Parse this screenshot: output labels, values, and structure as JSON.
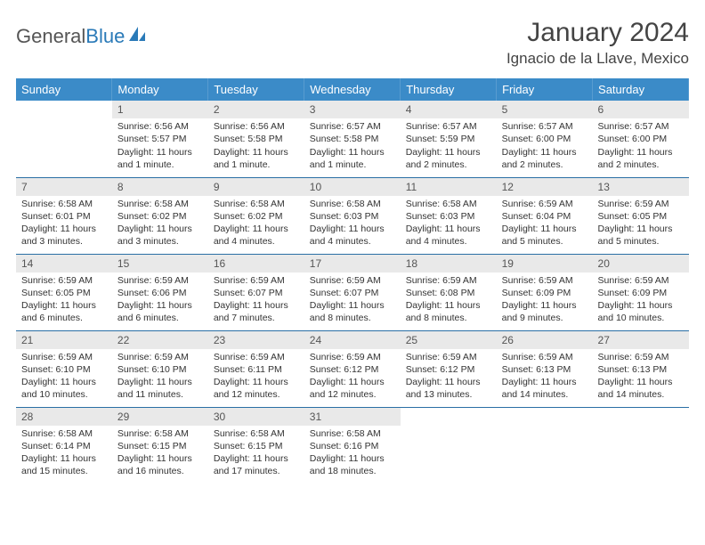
{
  "brand": {
    "part1": "General",
    "part2": "Blue"
  },
  "title": "January 2024",
  "location": "Ignacio de la Llave, Mexico",
  "colors": {
    "header_bg": "#3b8bc8",
    "row_border": "#2a6fa5",
    "daynum_bg": "#e9e9e9",
    "text": "#333333",
    "brand_gray": "#555555",
    "brand_blue": "#2a7ab8"
  },
  "weekdays": [
    "Sunday",
    "Monday",
    "Tuesday",
    "Wednesday",
    "Thursday",
    "Friday",
    "Saturday"
  ],
  "first_weekday_index": 1,
  "days": [
    {
      "n": 1,
      "sunrise": "6:56 AM",
      "sunset": "5:57 PM",
      "daylight": "11 hours and 1 minute."
    },
    {
      "n": 2,
      "sunrise": "6:56 AM",
      "sunset": "5:58 PM",
      "daylight": "11 hours and 1 minute."
    },
    {
      "n": 3,
      "sunrise": "6:57 AM",
      "sunset": "5:58 PM",
      "daylight": "11 hours and 1 minute."
    },
    {
      "n": 4,
      "sunrise": "6:57 AM",
      "sunset": "5:59 PM",
      "daylight": "11 hours and 2 minutes."
    },
    {
      "n": 5,
      "sunrise": "6:57 AM",
      "sunset": "6:00 PM",
      "daylight": "11 hours and 2 minutes."
    },
    {
      "n": 6,
      "sunrise": "6:57 AM",
      "sunset": "6:00 PM",
      "daylight": "11 hours and 2 minutes."
    },
    {
      "n": 7,
      "sunrise": "6:58 AM",
      "sunset": "6:01 PM",
      "daylight": "11 hours and 3 minutes."
    },
    {
      "n": 8,
      "sunrise": "6:58 AM",
      "sunset": "6:02 PM",
      "daylight": "11 hours and 3 minutes."
    },
    {
      "n": 9,
      "sunrise": "6:58 AM",
      "sunset": "6:02 PM",
      "daylight": "11 hours and 4 minutes."
    },
    {
      "n": 10,
      "sunrise": "6:58 AM",
      "sunset": "6:03 PM",
      "daylight": "11 hours and 4 minutes."
    },
    {
      "n": 11,
      "sunrise": "6:58 AM",
      "sunset": "6:03 PM",
      "daylight": "11 hours and 4 minutes."
    },
    {
      "n": 12,
      "sunrise": "6:59 AM",
      "sunset": "6:04 PM",
      "daylight": "11 hours and 5 minutes."
    },
    {
      "n": 13,
      "sunrise": "6:59 AM",
      "sunset": "6:05 PM",
      "daylight": "11 hours and 5 minutes."
    },
    {
      "n": 14,
      "sunrise": "6:59 AM",
      "sunset": "6:05 PM",
      "daylight": "11 hours and 6 minutes."
    },
    {
      "n": 15,
      "sunrise": "6:59 AM",
      "sunset": "6:06 PM",
      "daylight": "11 hours and 6 minutes."
    },
    {
      "n": 16,
      "sunrise": "6:59 AM",
      "sunset": "6:07 PM",
      "daylight": "11 hours and 7 minutes."
    },
    {
      "n": 17,
      "sunrise": "6:59 AM",
      "sunset": "6:07 PM",
      "daylight": "11 hours and 8 minutes."
    },
    {
      "n": 18,
      "sunrise": "6:59 AM",
      "sunset": "6:08 PM",
      "daylight": "11 hours and 8 minutes."
    },
    {
      "n": 19,
      "sunrise": "6:59 AM",
      "sunset": "6:09 PM",
      "daylight": "11 hours and 9 minutes."
    },
    {
      "n": 20,
      "sunrise": "6:59 AM",
      "sunset": "6:09 PM",
      "daylight": "11 hours and 10 minutes."
    },
    {
      "n": 21,
      "sunrise": "6:59 AM",
      "sunset": "6:10 PM",
      "daylight": "11 hours and 10 minutes."
    },
    {
      "n": 22,
      "sunrise": "6:59 AM",
      "sunset": "6:10 PM",
      "daylight": "11 hours and 11 minutes."
    },
    {
      "n": 23,
      "sunrise": "6:59 AM",
      "sunset": "6:11 PM",
      "daylight": "11 hours and 12 minutes."
    },
    {
      "n": 24,
      "sunrise": "6:59 AM",
      "sunset": "6:12 PM",
      "daylight": "11 hours and 12 minutes."
    },
    {
      "n": 25,
      "sunrise": "6:59 AM",
      "sunset": "6:12 PM",
      "daylight": "11 hours and 13 minutes."
    },
    {
      "n": 26,
      "sunrise": "6:59 AM",
      "sunset": "6:13 PM",
      "daylight": "11 hours and 14 minutes."
    },
    {
      "n": 27,
      "sunrise": "6:59 AM",
      "sunset": "6:13 PM",
      "daylight": "11 hours and 14 minutes."
    },
    {
      "n": 28,
      "sunrise": "6:58 AM",
      "sunset": "6:14 PM",
      "daylight": "11 hours and 15 minutes."
    },
    {
      "n": 29,
      "sunrise": "6:58 AM",
      "sunset": "6:15 PM",
      "daylight": "11 hours and 16 minutes."
    },
    {
      "n": 30,
      "sunrise": "6:58 AM",
      "sunset": "6:15 PM",
      "daylight": "11 hours and 17 minutes."
    },
    {
      "n": 31,
      "sunrise": "6:58 AM",
      "sunset": "6:16 PM",
      "daylight": "11 hours and 18 minutes."
    }
  ],
  "labels": {
    "sunrise": "Sunrise:",
    "sunset": "Sunset:",
    "daylight": "Daylight:"
  }
}
